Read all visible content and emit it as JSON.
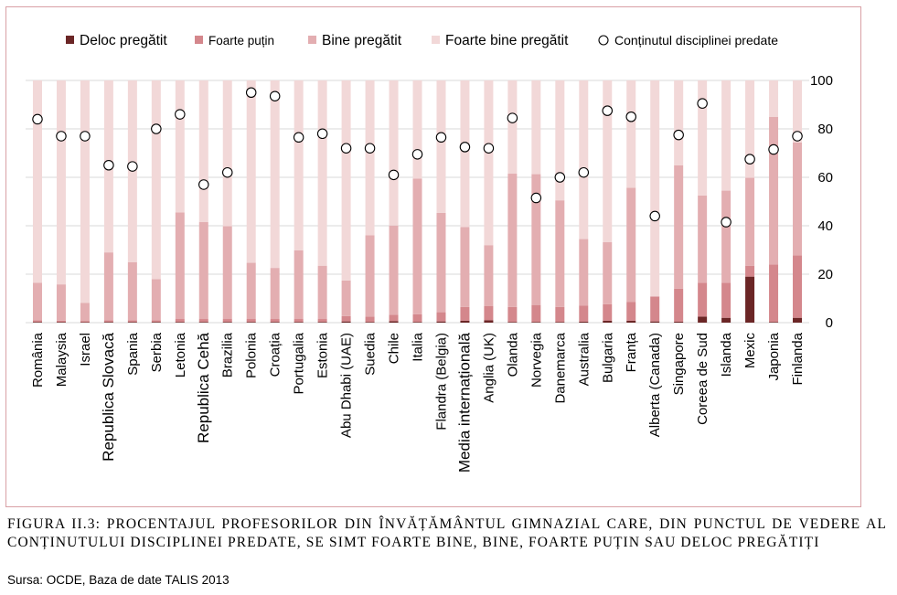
{
  "chart_data": {
    "type": "bar",
    "stacked": true,
    "series": [
      {
        "name": "Deloc pregătit",
        "color": "#6b2626",
        "values": [
          0.3,
          0.3,
          0.2,
          0.3,
          0.3,
          0.3,
          0.3,
          0.3,
          0.3,
          0.3,
          0.3,
          0.3,
          0.3,
          0.5,
          0.3,
          0.6,
          0.3,
          0.5,
          0.8,
          1,
          0.3,
          0.3,
          0.3,
          0.4,
          0.8,
          0.8,
          0.5,
          0.4,
          2.5,
          2,
          19,
          0.3,
          2
        ]
      },
      {
        "name": "Foarte puțin",
        "color": "#d4878c",
        "values": [
          0.7,
          0.5,
          0.5,
          0.7,
          0.7,
          0.7,
          1.2,
          1.2,
          1.2,
          1.2,
          1.2,
          1.2,
          1.2,
          2.2,
          2.2,
          2.7,
          3.2,
          3.8,
          5.7,
          5.8,
          6.2,
          7,
          6.2,
          6.7,
          6.8,
          7.7,
          10.3,
          13.6,
          14,
          14.5,
          4.5,
          23.7,
          25.8
        ]
      },
      {
        "name": "Bine pregătit",
        "color": "#e3aeb1",
        "values": [
          15.5,
          15,
          7.5,
          28,
          24,
          17,
          44,
          40,
          38.3,
          23.2,
          21.1,
          28.4,
          22,
          14.7,
          33.6,
          36.8,
          56,
          41,
          33,
          25.2,
          55,
          54,
          44,
          27.4,
          25.6,
          47.2,
          0,
          51,
          36,
          38,
          36.3,
          61,
          46.6
        ]
      },
      {
        "name": "Foarte bine pregătit",
        "color": "#f2d8d8",
        "values": [
          83.5,
          84.2,
          91.8,
          71,
          75,
          82,
          54.5,
          58.5,
          60.2,
          75.3,
          77.4,
          70.1,
          76.5,
          82.6,
          63.9,
          59.9,
          40.5,
          54.7,
          60.5,
          68,
          38.5,
          38.7,
          49.5,
          65.5,
          66.8,
          44.3,
          89.2,
          35,
          47.5,
          45.5,
          40.2,
          15,
          25.6
        ]
      }
    ],
    "dots": {
      "name": "Conținutul disciplinei predate",
      "values": [
        84,
        77,
        77,
        65,
        64.5,
        80,
        86,
        57,
        62,
        95,
        93.5,
        76.5,
        78,
        72,
        72,
        61,
        69.5,
        76.5,
        72.5,
        72,
        84.5,
        51.5,
        60,
        62,
        87.5,
        85,
        44,
        77.5,
        90.5,
        41.5,
        67.5,
        71.5,
        77
      ]
    },
    "categories": [
      "România",
      "Malaysia",
      "Israel",
      "Republica Slovacă",
      "Spania",
      "Serbia",
      "Letonia",
      "Republica Cehă",
      "Brazilia",
      "Polonia",
      "Croația",
      "Portugalia",
      "Estonia",
      "Abu Dhabi (UAE)",
      "Suedia",
      "Chile",
      "Italia",
      "Flandra (Belgia)",
      "Media internațională",
      "Anglia (UK)",
      "Olanda",
      "Norvegia",
      "Danemarca",
      "Australia",
      "Bulgaria",
      "Franța",
      "Alberta (Canada)",
      "Singapore",
      "Coreea de Sud",
      "Islanda",
      "Mexic",
      "Japonia",
      "Finlanda"
    ],
    "emphasized_categories": [
      "Republica Slovacă",
      "Republica Cehă",
      "Media internațională"
    ],
    "ylim": [
      0,
      100
    ],
    "yticks": [
      0,
      20,
      40,
      60,
      80,
      100
    ],
    "y_axis_side": "right",
    "grid": true,
    "legend_position": "top"
  },
  "caption": "FIGURA II.3: PROCENTAJUL PROFESORILOR DIN ÎNVĂȚĂMÂNTUL GIMNAZIAL CARE, DIN PUNCTUL DE VEDERE AL CONȚINUTULUI DISCIPLINEI PREDATE, SE SIMT FOARTE BINE, BINE, FOARTE PUȚIN SAU DELOC PREGĂTIȚI",
  "source": "Sursa: OCDE, Baza de date TALIS 2013"
}
